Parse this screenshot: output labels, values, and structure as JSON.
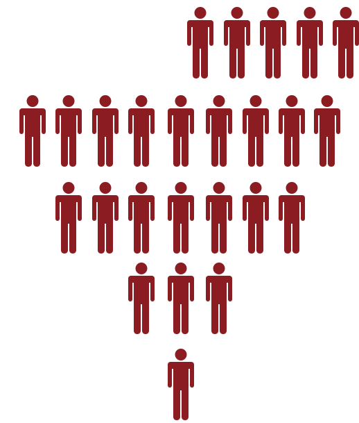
{
  "figure": {
    "icon": "person-icon",
    "fill": "#8b1c22",
    "rows": [
      {
        "count": 5
      },
      {
        "count": 9
      },
      {
        "count": 7
      },
      {
        "count": 3
      },
      {
        "count": 1
      }
    ]
  }
}
